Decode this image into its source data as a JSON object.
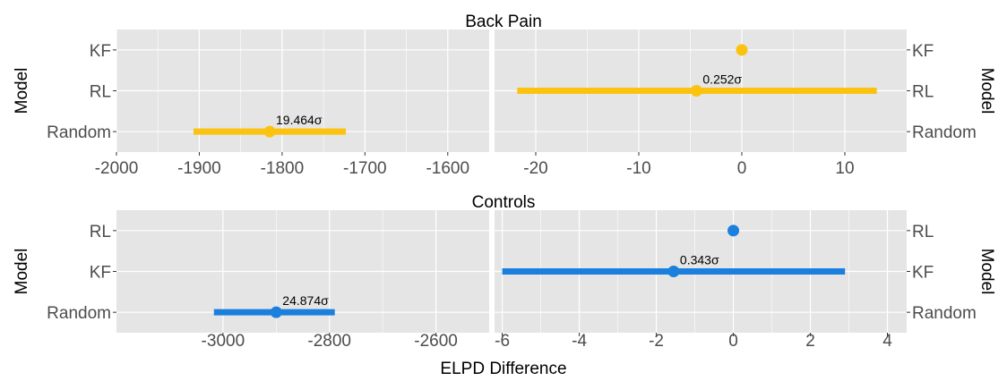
{
  "figure": {
    "xlabel": "ELPD Difference",
    "ylabel": "Model",
    "background_color": "#e5e5e5",
    "grid_color": "#ffffff"
  },
  "chart_data": [
    {
      "type": "scatter",
      "title": "Back Pain",
      "color": "#fbc30f",
      "categories": [
        "KF",
        "RL",
        "Random"
      ],
      "left_panel": {
        "xlim": [
          -2000,
          -1550
        ],
        "xticks": [
          -2000,
          -1900,
          -1800,
          -1700,
          -1600
        ],
        "tick_labels": [
          "-2000",
          "-1900",
          "-1800",
          "-1700",
          "-1600"
        ]
      },
      "right_panel": {
        "xlim": [
          -24,
          16
        ],
        "xticks": [
          -20,
          -10,
          0,
          10
        ],
        "tick_labels": [
          "-20",
          "-10",
          "0",
          "10"
        ]
      },
      "points": [
        {
          "model": "KF",
          "elpd_diff": 0,
          "lower": 0,
          "upper": 0,
          "label": ""
        },
        {
          "model": "RL",
          "elpd_diff": -4.4,
          "lower": -21.8,
          "upper": 13.1,
          "label": "0.252σ"
        },
        {
          "model": "Random",
          "elpd_diff": -1815,
          "lower": -1907,
          "upper": -1723,
          "label": "19.464σ"
        }
      ]
    },
    {
      "type": "scatter",
      "title": "Controls",
      "color": "#1a7fdd",
      "categories": [
        "RL",
        "KF",
        "Random"
      ],
      "left_panel": {
        "xlim": [
          -3200,
          -2500
        ],
        "xticks": [
          -3000,
          -2800,
          -2600
        ],
        "tick_labels": [
          "-3000",
          "-2800",
          "-2600"
        ]
      },
      "right_panel": {
        "xlim": [
          -6.2,
          4.5
        ],
        "xticks": [
          -6,
          -4,
          -2,
          0,
          2,
          4
        ],
        "tick_labels": [
          "-6",
          "-4",
          "-2",
          "0",
          "2",
          "4"
        ]
      },
      "points": [
        {
          "model": "RL",
          "elpd_diff": 0,
          "lower": 0,
          "upper": 0,
          "label": ""
        },
        {
          "model": "KF",
          "elpd_diff": -1.55,
          "lower": -6.0,
          "upper": 2.9,
          "label": "0.343σ"
        },
        {
          "model": "Random",
          "elpd_diff": -2900,
          "lower": -3017,
          "upper": -2790,
          "label": "24.874σ"
        }
      ]
    }
  ]
}
